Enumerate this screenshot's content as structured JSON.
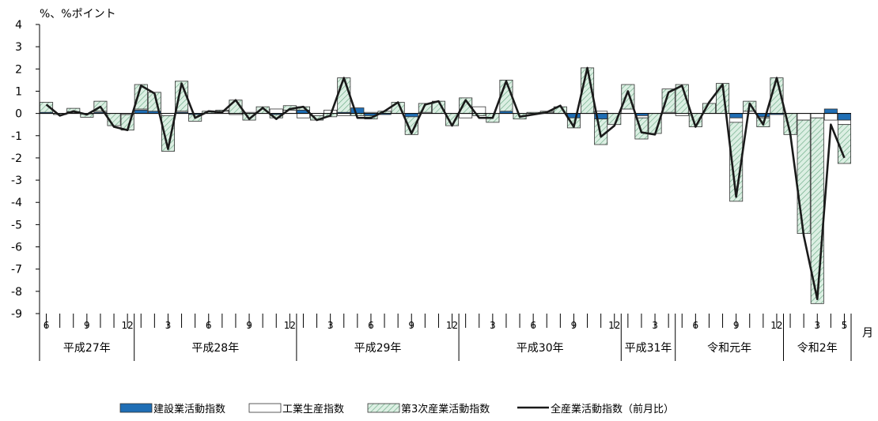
{
  "chart_data": {
    "type": "bar",
    "ylabel": "%、%ポイント",
    "x_unit": "月",
    "ylim": [
      -9,
      4
    ],
    "y_ticks": [
      "4",
      "3",
      "2",
      "1",
      "0",
      "-1",
      "-2",
      "-3",
      "-4",
      "-5",
      "-6",
      "-7",
      "-8",
      "-9"
    ],
    "month_labels": [
      {
        "i": 0,
        "label": "6"
      },
      {
        "i": 3,
        "label": "9"
      },
      {
        "i": 6,
        "label": "12"
      },
      {
        "i": 9,
        "label": "3"
      },
      {
        "i": 12,
        "label": "6"
      },
      {
        "i": 15,
        "label": "9"
      },
      {
        "i": 18,
        "label": "12"
      },
      {
        "i": 21,
        "label": "3"
      },
      {
        "i": 24,
        "label": "6"
      },
      {
        "i": 27,
        "label": "9"
      },
      {
        "i": 30,
        "label": "12"
      },
      {
        "i": 33,
        "label": "3"
      },
      {
        "i": 36,
        "label": "6"
      },
      {
        "i": 39,
        "label": "9"
      },
      {
        "i": 42,
        "label": "12"
      },
      {
        "i": 45,
        "label": "3"
      },
      {
        "i": 48,
        "label": "6"
      },
      {
        "i": 51,
        "label": "9"
      },
      {
        "i": 54,
        "label": "12"
      },
      {
        "i": 57,
        "label": "3"
      },
      {
        "i": 59,
        "label": "5"
      }
    ],
    "year_groups": [
      {
        "label": "平成27年",
        "start": 0,
        "end": 6
      },
      {
        "label": "平成28年",
        "start": 7,
        "end": 18
      },
      {
        "label": "平成29年",
        "start": 19,
        "end": 30
      },
      {
        "label": "平成30年",
        "start": 31,
        "end": 42
      },
      {
        "label": "平成31年",
        "start": 43,
        "end": 46
      },
      {
        "label": "令和元年",
        "start": 47,
        "end": 54
      },
      {
        "label": "令和2年",
        "start": 55,
        "end": 59
      }
    ],
    "series": [
      {
        "name": "建設業活動指数",
        "kind": "bar",
        "color": "#1f6eb5",
        "values": [
          0.05,
          0.0,
          0.03,
          -0.02,
          0.05,
          0.0,
          0.0,
          0.15,
          0.1,
          0.0,
          0.05,
          -0.05,
          0.0,
          0.0,
          0.0,
          0.0,
          0.0,
          -0.05,
          0.0,
          0.15,
          0.0,
          0.0,
          0.05,
          0.25,
          -0.1,
          -0.05,
          0.0,
          -0.15,
          0.0,
          0.0,
          0.0,
          0.0,
          0.0,
          0.0,
          0.1,
          0.0,
          0.0,
          0.0,
          0.0,
          -0.2,
          0.0,
          -0.25,
          0.0,
          0.0,
          -0.1,
          0.0,
          0.0,
          0.0,
          0.0,
          0.0,
          0.0,
          -0.2,
          0.0,
          -0.15,
          -0.05,
          0.0,
          0.0,
          0.0,
          0.2,
          -0.3
        ]
      },
      {
        "name": "工業生産指数",
        "kind": "bar",
        "color": "#ffffff",
        "values": [
          0.0,
          0.0,
          0.05,
          0.0,
          0.05,
          0.0,
          -0.05,
          0.05,
          0.0,
          -0.1,
          0.05,
          0.0,
          0.0,
          0.1,
          -0.05,
          0.05,
          0.0,
          0.2,
          0.15,
          -0.2,
          -0.1,
          0.15,
          -0.1,
          0.0,
          0.05,
          0.0,
          0.0,
          0.0,
          0.05,
          0.0,
          0.0,
          -0.2,
          0.3,
          0.0,
          0.0,
          0.0,
          0.0,
          0.05,
          0.0,
          0.0,
          0.0,
          0.1,
          0.0,
          0.2,
          -0.1,
          0.0,
          0.05,
          -0.1,
          0.0,
          0.0,
          0.0,
          -0.2,
          0.1,
          -0.05,
          0.0,
          0.0,
          -0.3,
          -0.2,
          -0.3,
          -0.2
        ]
      },
      {
        "name": "第3次産業活動指数",
        "kind": "bar",
        "color": "#cfe9d9",
        "values": [
          0.45,
          -0.05,
          0.15,
          -0.15,
          0.45,
          -0.55,
          -0.7,
          1.1,
          0.85,
          -1.6,
          1.35,
          -0.3,
          0.1,
          0.05,
          0.6,
          -0.3,
          0.3,
          -0.15,
          0.2,
          0.15,
          -0.2,
          -0.15,
          1.55,
          -0.1,
          -0.15,
          0.1,
          0.5,
          -0.8,
          0.4,
          0.55,
          -0.55,
          0.7,
          -0.1,
          -0.4,
          1.4,
          -0.25,
          0.05,
          0.05,
          0.3,
          -0.45,
          2.05,
          -1.15,
          -0.5,
          1.1,
          -0.95,
          -0.9,
          1.05,
          1.3,
          -0.6,
          0.45,
          1.35,
          -3.55,
          0.45,
          -0.4,
          1.6,
          -0.95,
          -5.1,
          -8.35,
          0.0,
          -1.75
        ]
      },
      {
        "name": "全産業活動指数（前月比）",
        "kind": "line",
        "color": "#1a1a1a",
        "values": [
          0.4,
          -0.1,
          0.1,
          -0.05,
          0.3,
          -0.6,
          -0.75,
          1.25,
          0.9,
          -1.6,
          1.35,
          -0.2,
          0.1,
          0.05,
          0.6,
          -0.25,
          0.25,
          -0.25,
          0.2,
          0.3,
          -0.3,
          -0.1,
          1.6,
          -0.2,
          -0.2,
          0.1,
          0.5,
          -0.9,
          0.4,
          0.55,
          -0.55,
          0.6,
          -0.2,
          -0.2,
          1.45,
          -0.15,
          -0.05,
          0.05,
          0.35,
          -0.6,
          2.05,
          -1.05,
          -0.55,
          1.0,
          -0.85,
          -0.95,
          0.95,
          1.25,
          -0.6,
          0.5,
          1.3,
          -3.75,
          0.45,
          -0.5,
          1.6,
          -0.9,
          -5.5,
          -8.35,
          -0.5,
          -2.0
        ]
      }
    ]
  }
}
